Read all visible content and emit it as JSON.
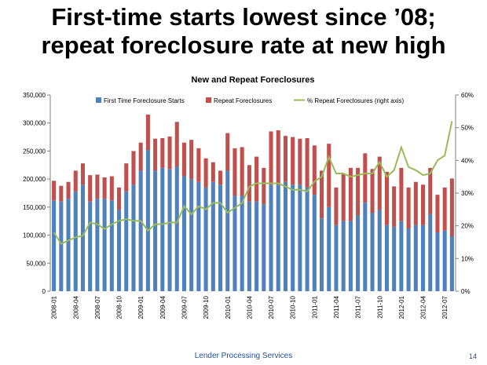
{
  "slide": {
    "headline_line1": "First-time starts lowest since ’08;",
    "headline_line2": "repeat foreclosure rate at new high",
    "footer": "Lender Processing Services",
    "page_number": "14"
  },
  "chart_data": {
    "type": "bar",
    "title": "New and Repeat Foreclosures",
    "stacked": true,
    "xlabel": "",
    "ylabel": "",
    "ylim": [
      0,
      350000
    ],
    "y2lim": [
      0,
      0.6
    ],
    "yticks": [
      "0",
      "50,000",
      "100,000",
      "150,000",
      "200,000",
      "250,000",
      "300,000",
      "350,000"
    ],
    "y2ticks": [
      "0%",
      "10%",
      "20%",
      "30%",
      "40%",
      "50%",
      "60%"
    ],
    "grid": false,
    "legend_position": "top",
    "colors": {
      "first": "#4f81bd",
      "repeat": "#c0504d",
      "pct": "#9bbb59"
    },
    "tick_labels": [
      "2008-01",
      "2008-04",
      "2008-07",
      "2008-10",
      "2009-01",
      "2009-04",
      "2009-07",
      "2009-10",
      "2010-01",
      "2010-04",
      "2010-07",
      "2010-10",
      "2011-01",
      "2011-04",
      "2011-07",
      "2011-10",
      "2012-01",
      "2012-04",
      "2012-07"
    ],
    "categories": [
      "2008-01",
      "2008-02",
      "2008-03",
      "2008-04",
      "2008-05",
      "2008-06",
      "2008-07",
      "2008-08",
      "2008-09",
      "2008-10",
      "2008-11",
      "2008-12",
      "2009-01",
      "2009-02",
      "2009-03",
      "2009-04",
      "2009-05",
      "2009-06",
      "2009-07",
      "2009-08",
      "2009-09",
      "2009-10",
      "2009-11",
      "2009-12",
      "2010-01",
      "2010-02",
      "2010-03",
      "2010-04",
      "2010-05",
      "2010-06",
      "2010-07",
      "2010-08",
      "2010-09",
      "2010-10",
      "2010-11",
      "2010-12",
      "2011-01",
      "2011-02",
      "2011-03",
      "2011-04",
      "2011-05",
      "2011-06",
      "2011-07",
      "2011-08",
      "2011-09",
      "2011-10",
      "2011-11",
      "2011-12",
      "2012-01",
      "2012-02",
      "2012-03",
      "2012-04",
      "2012-05",
      "2012-06",
      "2012-07",
      "2012-08"
    ],
    "series": [
      {
        "name": "First Time Foreclosure Starts",
        "type": "bar",
        "values": [
          162000,
          160000,
          165000,
          178000,
          190000,
          160000,
          165000,
          165000,
          162000,
          145000,
          178000,
          190000,
          215000,
          252000,
          215000,
          220000,
          218000,
          222000,
          205000,
          200000,
          195000,
          185000,
          195000,
          190000,
          215000,
          170000,
          170000,
          160000,
          160000,
          155000,
          190000,
          190000,
          195000,
          190000,
          190000,
          185000,
          172000,
          130000,
          150000,
          118000,
          125000,
          125000,
          135000,
          158000,
          140000,
          145000,
          118000,
          115000,
          125000,
          112000,
          118000,
          118000,
          137000,
          105000,
          108000,
          98000
        ]
      },
      {
        "name": "Repeat Foreclosures",
        "type": "bar",
        "values": [
          35000,
          28000,
          30000,
          37000,
          38000,
          47000,
          43000,
          38000,
          43000,
          40000,
          50000,
          60000,
          50000,
          63000,
          57000,
          53000,
          58000,
          80000,
          60000,
          70000,
          60000,
          52000,
          35000,
          25000,
          67000,
          85000,
          87000,
          65000,
          80000,
          65000,
          95000,
          97000,
          82000,
          85000,
          82000,
          88000,
          88000,
          85000,
          113000,
          67000,
          85000,
          95000,
          85000,
          88000,
          78000,
          95000,
          95000,
          72000,
          95000,
          73000,
          77000,
          72000,
          83000,
          67000,
          77000,
          103000
        ]
      },
      {
        "name": "% Repeat Foreclosures (right axis)",
        "type": "line",
        "axis": "right",
        "values": [
          0.18,
          0.145,
          0.155,
          0.165,
          0.17,
          0.21,
          0.205,
          0.19,
          0.205,
          0.215,
          0.22,
          0.215,
          0.215,
          0.185,
          0.205,
          0.205,
          0.21,
          0.21,
          0.26,
          0.235,
          0.26,
          0.25,
          0.27,
          0.27,
          0.24,
          0.255,
          0.27,
          0.32,
          0.33,
          0.33,
          0.33,
          0.33,
          0.32,
          0.31,
          0.31,
          0.305,
          0.335,
          0.35,
          0.41,
          0.36,
          0.36,
          0.35,
          0.355,
          0.36,
          0.36,
          0.395,
          0.35,
          0.37,
          0.44,
          0.38,
          0.37,
          0.355,
          0.36,
          0.4,
          0.415,
          0.52
        ]
      }
    ]
  }
}
